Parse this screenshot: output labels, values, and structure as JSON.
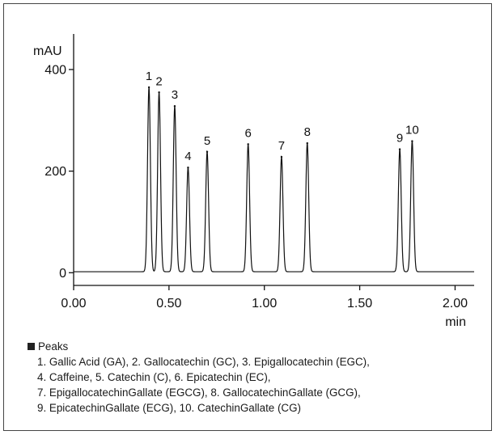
{
  "chart_data": {
    "type": "line",
    "title": "",
    "xlabel": "min",
    "ylabel": "mAU",
    "xlim": [
      0.0,
      2.1
    ],
    "ylim": [
      -25,
      470
    ],
    "grid": false,
    "x_ticks": [
      0.0,
      0.5,
      1.0,
      1.5,
      2.0
    ],
    "x_tick_labels": [
      "0.00",
      "0.50",
      "1.00",
      "1.50",
      "2.00"
    ],
    "y_ticks": [
      0,
      200,
      400
    ],
    "y_tick_labels": [
      "0",
      "200",
      "400"
    ],
    "baseline": 2,
    "peaks": [
      {
        "label": "1",
        "x": 0.395,
        "y": 365
      },
      {
        "label": "2",
        "x": 0.448,
        "y": 355
      },
      {
        "label": "3",
        "x": 0.53,
        "y": 328
      },
      {
        "label": "4",
        "x": 0.6,
        "y": 207
      },
      {
        "label": "5",
        "x": 0.7,
        "y": 238
      },
      {
        "label": "6",
        "x": 0.915,
        "y": 253
      },
      {
        "label": "7",
        "x": 1.09,
        "y": 228
      },
      {
        "label": "8",
        "x": 1.225,
        "y": 255
      },
      {
        "label": "9",
        "x": 1.71,
        "y": 243
      },
      {
        "label": "10",
        "x": 1.775,
        "y": 259
      }
    ]
  },
  "legend": {
    "heading": "Peaks",
    "lines": [
      "1. Gallic Acid (GA), 2. Gallocatechin (GC), 3. Epigallocatechin (EGC),",
      "4. Caffeine, 5. Catechin (C), 6. Epicatechin (EC),",
      "7. EpigallocatechinGallate (EGCG), 8. GallocatechinGallate (GCG),",
      "9. EpicatechinGallate (ECG), 10. CatechinGallate (CG)"
    ]
  }
}
